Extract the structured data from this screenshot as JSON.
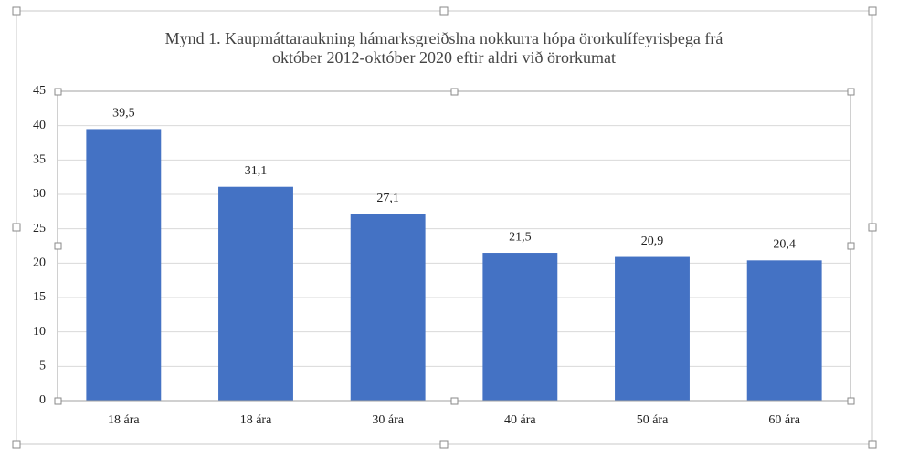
{
  "chart_data": {
    "type": "bar",
    "title": [
      "Mynd 1. Kaupmáttaraukning hámarksgreiðslna nokkurra hópa örorkulífeyrisþega frá",
      "október 2012-október 2020 eftir aldri við örorkumat"
    ],
    "categories": [
      "18 ára",
      "18 ára",
      "30 ára",
      "40 ára",
      "50 ára",
      "60 ára"
    ],
    "values": [
      39.5,
      31.1,
      27.1,
      21.5,
      20.9,
      20.4
    ],
    "value_labels": [
      "39,5",
      "31,1",
      "27,1",
      "21,5",
      "20,9",
      "20,4"
    ],
    "color": "#4472c4",
    "ylim": [
      0,
      45
    ],
    "yticks": [
      0,
      5,
      10,
      15,
      20,
      25,
      30,
      35,
      40,
      45
    ],
    "grid": true
  }
}
